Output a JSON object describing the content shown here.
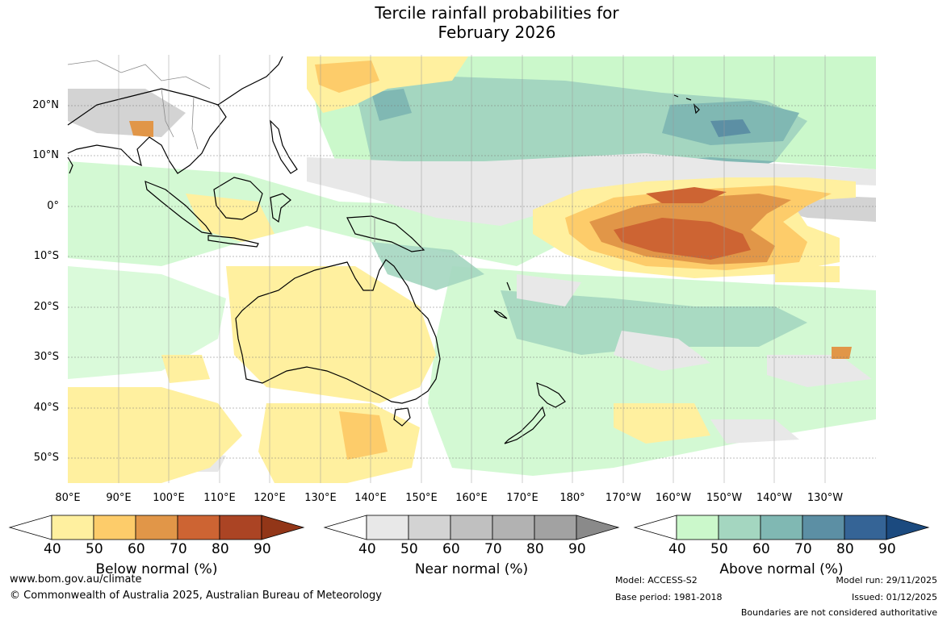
{
  "title": {
    "line1": "Tercile rainfall probabilities for",
    "line2": "February 2026"
  },
  "map": {
    "latitude_labels": [
      "20°N",
      "10°N",
      "0°",
      "10°S",
      "20°S",
      "30°S",
      "40°S",
      "50°S"
    ],
    "longitude_labels": [
      "80°E",
      "90°E",
      "100°E",
      "110°E",
      "120°E",
      "130°E",
      "140°E",
      "150°E",
      "160°E",
      "170°E",
      "180°",
      "170°W",
      "160°W",
      "150°W",
      "140°W",
      "130°W"
    ]
  },
  "colorbars": [
    {
      "title": "Below normal (%)",
      "ticks": [
        "40",
        "50",
        "60",
        "70",
        "80",
        "90"
      ],
      "colors": [
        "#fff09f",
        "#fdcc6a",
        "#e19648",
        "#cd6433",
        "#ab4424",
        "#923618"
      ]
    },
    {
      "title": "Near normal (%)",
      "ticks": [
        "40",
        "50",
        "60",
        "70",
        "80",
        "90"
      ],
      "colors": [
        "#e8e8e8",
        "#d3d3d3",
        "#c0c0c0",
        "#b2b2b2",
        "#a2a2a2",
        "#8a8a8a"
      ]
    },
    {
      "title": "Above normal (%)",
      "ticks": [
        "40",
        "50",
        "60",
        "70",
        "80",
        "90"
      ],
      "colors": [
        "#cbf8cb",
        "#a4d6c0",
        "#80b8b3",
        "#5c8fa4",
        "#356496",
        "#1b4a7f"
      ]
    }
  ],
  "footer": {
    "website": "www.bom.gov.au/climate",
    "copyright": "© Commonwealth of Australia 2025, Australian Bureau of Meteorology",
    "model": "Model: ACCESS-S2",
    "base_period": "Base period: 1981-2018",
    "model_run": "Model run: 29/11/2025",
    "issued": "Issued: 01/12/2025",
    "disclaimer": "Boundaries are not considered authoritative"
  }
}
